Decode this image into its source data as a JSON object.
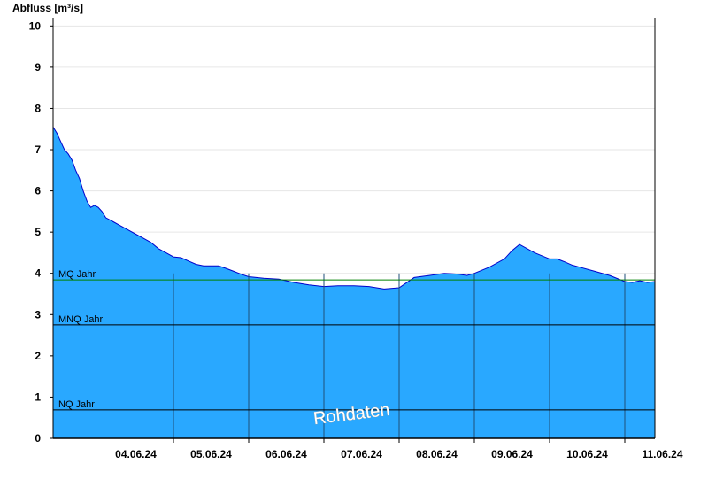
{
  "chart_data": {
    "type": "area",
    "ylabel": "Abfluss [m³/s]",
    "watermark": "Rohdaten",
    "ylim": [
      0,
      10.2
    ],
    "yticks": [
      "0",
      "1",
      "2",
      "3",
      "4",
      "5",
      "6",
      "7",
      "8",
      "9",
      "10"
    ],
    "xticks": [
      "04.06.24",
      "05.06.24",
      "06.06.24",
      "07.06.24",
      "08.06.24",
      "09.06.24",
      "10.06.24",
      "11.06.24"
    ],
    "xlim_days": [
      3.4,
      11.4
    ],
    "grid": true,
    "fill_color": "#29a8ff",
    "line_color": "#0000cc",
    "reference_lines": [
      {
        "label": "MQ Jahr",
        "value": 3.84,
        "color": "#008000"
      },
      {
        "label": "MNQ Jahr",
        "value": 2.75,
        "color": "#000000"
      },
      {
        "label": "NQ Jahr",
        "value": 0.69,
        "color": "#000000"
      }
    ],
    "series": [
      {
        "x": [
          3.4,
          3.45,
          3.5,
          3.55,
          3.6,
          3.65,
          3.7,
          3.75,
          3.8,
          3.85,
          3.9,
          3.95,
          4.0,
          4.05,
          4.1,
          4.15,
          4.2,
          4.3,
          4.4,
          4.5,
          4.6,
          4.7,
          4.8,
          4.9,
          5.0,
          5.1,
          5.2,
          5.3,
          5.4,
          5.5,
          5.6,
          5.7,
          5.8,
          5.9,
          6.0,
          6.2,
          6.4,
          6.6,
          6.8,
          7.0,
          7.2,
          7.4,
          7.6,
          7.8,
          8.0,
          8.2,
          8.4,
          8.6,
          8.8,
          8.9,
          9.0,
          9.2,
          9.4,
          9.5,
          9.6,
          9.8,
          10.0,
          10.1,
          10.2,
          10.3,
          10.4,
          10.6,
          10.8,
          11.0,
          11.1,
          11.15,
          11.2,
          11.3,
          11.4
        ],
        "y": [
          7.55,
          7.4,
          7.2,
          7.0,
          6.9,
          6.75,
          6.5,
          6.3,
          6.0,
          5.75,
          5.6,
          5.65,
          5.6,
          5.5,
          5.35,
          5.3,
          5.25,
          5.15,
          5.05,
          4.95,
          4.85,
          4.75,
          4.6,
          4.5,
          4.4,
          4.38,
          4.3,
          4.22,
          4.18,
          4.18,
          4.18,
          4.12,
          4.05,
          3.98,
          3.92,
          3.88,
          3.86,
          3.78,
          3.72,
          3.68,
          3.7,
          3.7,
          3.68,
          3.62,
          3.65,
          3.9,
          3.95,
          4.0,
          3.98,
          3.95,
          4.0,
          4.15,
          4.35,
          4.55,
          4.7,
          4.5,
          4.35,
          4.35,
          4.28,
          4.2,
          4.15,
          4.05,
          3.95,
          3.8,
          3.78,
          3.8,
          3.82,
          3.78,
          3.8
        ]
      }
    ]
  }
}
